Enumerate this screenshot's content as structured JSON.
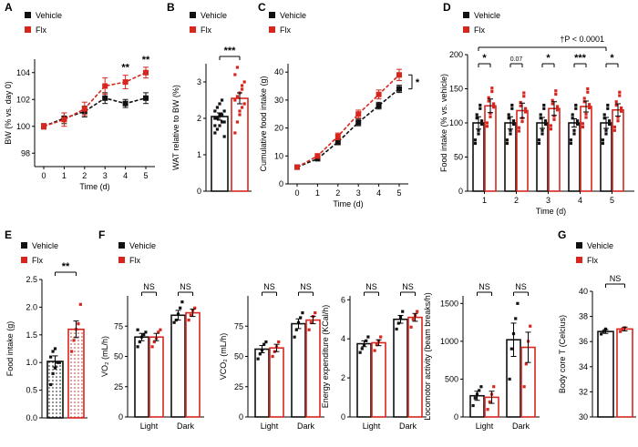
{
  "colors": {
    "vehicle": "#111111",
    "flx": "#d7261e",
    "axis": "#000000",
    "scatter_gray": "#999999"
  },
  "chart_data": [
    {
      "id": "A",
      "type": "line",
      "panel_label": "A",
      "legend": [
        "Vehicle",
        "Flx"
      ],
      "xlabel": "Time (d)",
      "ylabel": "BW (% vs. day 0)",
      "xlim": [
        0,
        5
      ],
      "ylim": [
        97,
        105
      ],
      "xticks": [
        "0",
        "1",
        "2",
        "3",
        "4",
        "5"
      ],
      "yticks": [
        "98",
        "100",
        "102",
        "104"
      ],
      "x": [
        0,
        1,
        2,
        3,
        4,
        5
      ],
      "series": [
        {
          "name": "Vehicle",
          "values": [
            100.0,
            100.6,
            101.1,
            102.1,
            101.7,
            102.1
          ],
          "errors": [
            0.2,
            0.4,
            0.4,
            0.4,
            0.3,
            0.4
          ]
        },
        {
          "name": "Flx",
          "values": [
            100.0,
            100.5,
            101.3,
            103.0,
            103.3,
            104.0
          ],
          "errors": [
            0.2,
            0.5,
            0.5,
            0.6,
            0.5,
            0.4
          ]
        }
      ],
      "annotations": [
        {
          "x": 4,
          "text": "**"
        },
        {
          "x": 5,
          "text": "**"
        }
      ]
    },
    {
      "id": "B",
      "type": "bar",
      "panel_label": "B",
      "legend": [
        "Vehicle",
        "Flx"
      ],
      "ylabel": "WAT relative to BW (%)",
      "ylim": [
        0,
        3.5
      ],
      "yticks": [
        "0",
        "1",
        "2",
        "3"
      ],
      "categories": [
        "Vehicle",
        "Flx"
      ],
      "values": [
        2.05,
        2.55
      ],
      "errors": [
        0.1,
        0.15
      ],
      "points": [
        [
          1.6,
          1.7,
          1.8,
          1.9,
          1.9,
          2.0,
          2.0,
          2.1,
          2.1,
          2.2,
          2.2,
          2.3,
          2.4,
          2.5,
          1.5,
          1.8
        ],
        [
          1.6,
          1.9,
          2.1,
          2.3,
          2.4,
          2.5,
          2.6,
          2.7,
          2.8,
          3.0,
          3.2,
          3.4,
          2.2,
          2.9
        ]
      ],
      "significance": "***"
    },
    {
      "id": "C",
      "type": "line",
      "panel_label": "C",
      "legend": [
        "Vehicle",
        "Flx"
      ],
      "xlabel": "Time (d)",
      "ylabel": "Cumulative food intake (g)",
      "xlim": [
        0,
        5
      ],
      "ylim": [
        0,
        43
      ],
      "xticks": [
        "0",
        "1",
        "2",
        "3",
        "4",
        "5"
      ],
      "yticks": [
        "0",
        "10",
        "20",
        "30",
        "40"
      ],
      "x": [
        0,
        1,
        2,
        3,
        4,
        5
      ],
      "series": [
        {
          "name": "Vehicle",
          "values": [
            6,
            9,
            15,
            22,
            28,
            34
          ],
          "errors": [
            0.4,
            0.6,
            1.0,
            1.2,
            1.2,
            1.3
          ]
        },
        {
          "name": "Flx",
          "values": [
            6,
            10,
            17,
            25,
            32,
            39
          ],
          "errors": [
            0.4,
            0.8,
            1.2,
            1.4,
            1.6,
            2.0
          ]
        }
      ],
      "annotations": [
        {
          "x": 5,
          "text": "*"
        }
      ]
    },
    {
      "id": "D",
      "type": "bar",
      "panel_label": "D",
      "legend": [
        "Vehicle",
        "Flx"
      ],
      "xlabel": "Time (d)",
      "ylabel": "Food intake (% vs. vehicle)",
      "ylim": [
        0,
        200
      ],
      "yticks": [
        "0",
        "50",
        "100",
        "150",
        "200"
      ],
      "categories": [
        "1",
        "2",
        "3",
        "4",
        "5"
      ],
      "series": [
        {
          "name": "Vehicle",
          "values": [
            100,
            100,
            100,
            100,
            100
          ],
          "errors": [
            9,
            9,
            8,
            6,
            8
          ]
        },
        {
          "name": "Flx",
          "values": [
            125,
            118,
            121,
            124,
            119
          ],
          "errors": [
            10,
            11,
            10,
            8,
            9
          ]
        }
      ],
      "pair_annotations": [
        "*",
        "0.07",
        "*",
        "***",
        "*"
      ],
      "overall_annotation": "†P < 0.0001"
    },
    {
      "id": "E",
      "type": "bar",
      "panel_label": "E",
      "legend": [
        "Vehicle",
        "Flx"
      ],
      "ylabel": "Food intake (g)",
      "ylim": [
        0,
        2.5
      ],
      "yticks": [
        "0.0",
        "0.5",
        "1.0",
        "1.5",
        "2.0",
        "2.5"
      ],
      "categories": [
        "Vehicle",
        "Flx"
      ],
      "values": [
        1.02,
        1.6
      ],
      "errors": [
        0.1,
        0.15
      ],
      "points": [
        [
          0.6,
          0.8,
          0.9,
          1.0,
          1.0,
          1.1,
          1.2,
          1.25
        ],
        [
          1.2,
          1.4,
          1.6,
          1.7,
          2.05
        ]
      ],
      "significance": "**"
    },
    {
      "id": "F1",
      "type": "bar",
      "panel_label": "F",
      "legend": [
        "Vehicle",
        "Flx"
      ],
      "ylabel": "VO₂ (mL/h)",
      "ylim": [
        0,
        100
      ],
      "yticks": [
        "0",
        "25",
        "50",
        "75"
      ],
      "categories": [
        "Light",
        "Dark"
      ],
      "series": [
        {
          "name": "Vehicle",
          "values": [
            66,
            84
          ],
          "errors": [
            3,
            4
          ]
        },
        {
          "name": "Flx",
          "values": [
            66,
            86
          ],
          "errors": [
            3,
            3
          ]
        }
      ],
      "points": [
        [
          [
            58,
            62,
            66,
            68,
            70,
            72
          ],
          [
            78,
            80,
            85,
            90,
            95
          ]
        ],
        [
          [
            58,
            62,
            65,
            70,
            72
          ],
          [
            80,
            84,
            88,
            90
          ]
        ]
      ],
      "pair_annotations": [
        "NS",
        "NS"
      ]
    },
    {
      "id": "F2",
      "type": "bar",
      "legend": [],
      "ylabel": "VCO₂ (mL/h)",
      "ylim": [
        0,
        100
      ],
      "yticks": [
        "0",
        "25",
        "50",
        "75"
      ],
      "categories": [
        "Light",
        "Dark"
      ],
      "series": [
        {
          "name": "Vehicle",
          "values": [
            56,
            77
          ],
          "errors": [
            3,
            4
          ]
        },
        {
          "name": "Flx",
          "values": [
            57,
            80
          ],
          "errors": [
            3,
            3
          ]
        }
      ],
      "points": [
        [
          [
            48,
            52,
            55,
            60,
            62
          ],
          [
            66,
            72,
            78,
            82,
            86
          ]
        ],
        [
          [
            50,
            54,
            58,
            62
          ],
          [
            72,
            78,
            83,
            86
          ]
        ]
      ],
      "pair_annotations": [
        "NS",
        "NS"
      ]
    },
    {
      "id": "F3",
      "type": "bar",
      "legend": [],
      "ylabel": "Energy expenditure (KCal/h)",
      "ylim": [
        0,
        6.2
      ],
      "yticks": [
        "0",
        "2",
        "4",
        "6"
      ],
      "categories": [
        "Light",
        "Dark"
      ],
      "series": [
        {
          "name": "Vehicle",
          "values": [
            3.75,
            5.0
          ],
          "errors": [
            0.15,
            0.2
          ]
        },
        {
          "name": "Flx",
          "values": [
            3.8,
            5.1
          ],
          "errors": [
            0.15,
            0.2
          ]
        }
      ],
      "points": [
        [
          [
            3.3,
            3.5,
            3.7,
            3.9,
            4.1
          ],
          [
            4.5,
            4.8,
            5.1,
            5.4
          ]
        ],
        [
          [
            3.4,
            3.7,
            3.9,
            4.1
          ],
          [
            4.6,
            5.0,
            5.2,
            5.4
          ]
        ]
      ],
      "pair_annotations": [
        "NS",
        "NS"
      ]
    },
    {
      "id": "F4",
      "type": "bar",
      "legend": [],
      "ylabel": "Locomotor activity (beam breaks/h)",
      "ylim": [
        0,
        1600
      ],
      "yticks": [
        "0",
        "500",
        "1000",
        "1500"
      ],
      "categories": [
        "Light",
        "Dark"
      ],
      "series": [
        {
          "name": "Vehicle",
          "values": [
            280,
            1020
          ],
          "errors": [
            60,
            220
          ]
        },
        {
          "name": "Flx",
          "values": [
            260,
            920
          ],
          "errors": [
            80,
            200
          ]
        }
      ],
      "points": [
        [
          [
            150,
            250,
            300,
            350,
            400
          ],
          [
            500,
            900,
            1100,
            1300,
            1500
          ]
        ],
        [
          [
            100,
            200,
            300,
            400
          ],
          [
            400,
            700,
            1000,
            1200
          ]
        ]
      ],
      "pair_annotations": [
        "NS",
        "NS"
      ]
    },
    {
      "id": "G",
      "type": "bar",
      "panel_label": "G",
      "legend": [
        "Vehicle",
        "Flx"
      ],
      "ylabel": "Body core T (Celcius)",
      "ylim": [
        30,
        40
      ],
      "yticks": [
        "30",
        "32",
        "34",
        "36",
        "38",
        "40"
      ],
      "categories": [
        "Vehicle",
        "Flx"
      ],
      "values": [
        36.8,
        37.0
      ],
      "errors": [
        0.15,
        0.15
      ],
      "points": [
        [
          36.6,
          36.8,
          37.0
        ],
        [
          36.8,
          37.0,
          37.1
        ]
      ],
      "significance": "NS"
    }
  ]
}
